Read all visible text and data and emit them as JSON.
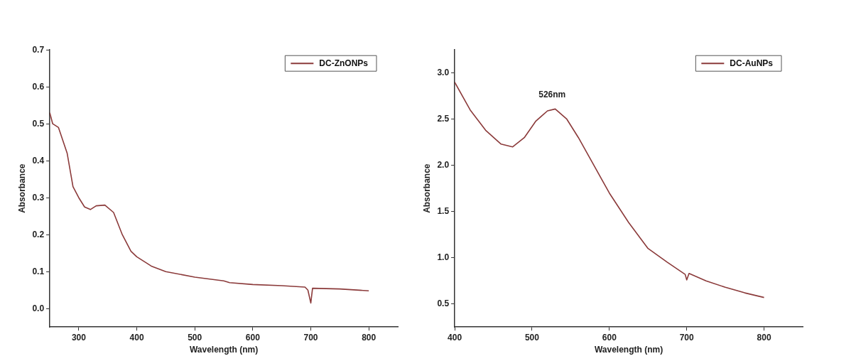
{
  "chart_data": [
    {
      "type": "line",
      "xlabel": "Wavelength (nm)",
      "ylabel": "Absorbance",
      "legend": "top right",
      "grid": false,
      "marker": "none",
      "line_style": "solid",
      "xlim": [
        250,
        850
      ],
      "xticks": [
        300,
        400,
        500,
        600,
        700,
        800
      ],
      "ylim": [
        -0.05,
        0.7
      ],
      "yticks": [
        {
          "value": 0,
          "label": "0.0"
        },
        {
          "value": 0.1,
          "label": "0.1"
        },
        {
          "value": 0.2,
          "label": "0.2"
        },
        {
          "value": 0.3,
          "label": "0.3"
        },
        {
          "value": 0.4,
          "label": "0.4"
        },
        {
          "value": 0.5,
          "label": "0.5"
        },
        {
          "value": 0.6,
          "label": "0.6"
        },
        {
          "value": 0.7,
          "label": "0.7"
        }
      ],
      "series": [
        {
          "name": "DC-ZnONPs",
          "color": "#8b3a3a",
          "x": [
            250,
            255,
            265,
            280,
            290,
            300,
            310,
            320,
            330,
            345,
            360,
            375,
            390,
            400,
            425,
            450,
            500,
            550,
            560,
            600,
            650,
            690,
            695,
            700,
            703,
            750,
            800
          ],
          "values": [
            0.53,
            0.5,
            0.49,
            0.42,
            0.33,
            0.3,
            0.275,
            0.268,
            0.278,
            0.28,
            0.26,
            0.2,
            0.155,
            0.14,
            0.115,
            0.1,
            0.085,
            0.075,
            0.07,
            0.065,
            0.062,
            0.058,
            0.05,
            0.015,
            0.055,
            0.053,
            0.048
          ]
        }
      ]
    },
    {
      "type": "line",
      "xlabel": "Wavelength (nm)",
      "ylabel": "Absorbance",
      "legend": "top right",
      "grid": false,
      "marker": "none",
      "line_style": "solid",
      "xlim": [
        400,
        850
      ],
      "xticks": [
        400,
        500,
        600,
        700,
        800
      ],
      "ylim": [
        0.25,
        3.25
      ],
      "yticks": [
        {
          "value": 0.5,
          "label": "0.5"
        },
        {
          "value": 1.0,
          "label": "1.0"
        },
        {
          "value": 1.5,
          "label": "1.5"
        },
        {
          "value": 2.0,
          "label": "2.0"
        },
        {
          "value": 2.5,
          "label": "2.5"
        },
        {
          "value": 3.0,
          "label": "3.0"
        }
      ],
      "annotations": [
        {
          "text": "526nm",
          "x": 526,
          "y": 2.61
        }
      ],
      "series": [
        {
          "name": "DC-AuNPs",
          "color": "#8b3a3a",
          "x": [
            400,
            420,
            440,
            460,
            475,
            490,
            505,
            520,
            530,
            545,
            560,
            580,
            600,
            625,
            650,
            675,
            698,
            700,
            703,
            725,
            750,
            775,
            800
          ],
          "values": [
            2.9,
            2.6,
            2.38,
            2.23,
            2.2,
            2.3,
            2.48,
            2.59,
            2.61,
            2.5,
            2.3,
            2.0,
            1.7,
            1.38,
            1.1,
            0.95,
            0.82,
            0.76,
            0.83,
            0.75,
            0.68,
            0.62,
            0.57
          ]
        }
      ]
    }
  ]
}
